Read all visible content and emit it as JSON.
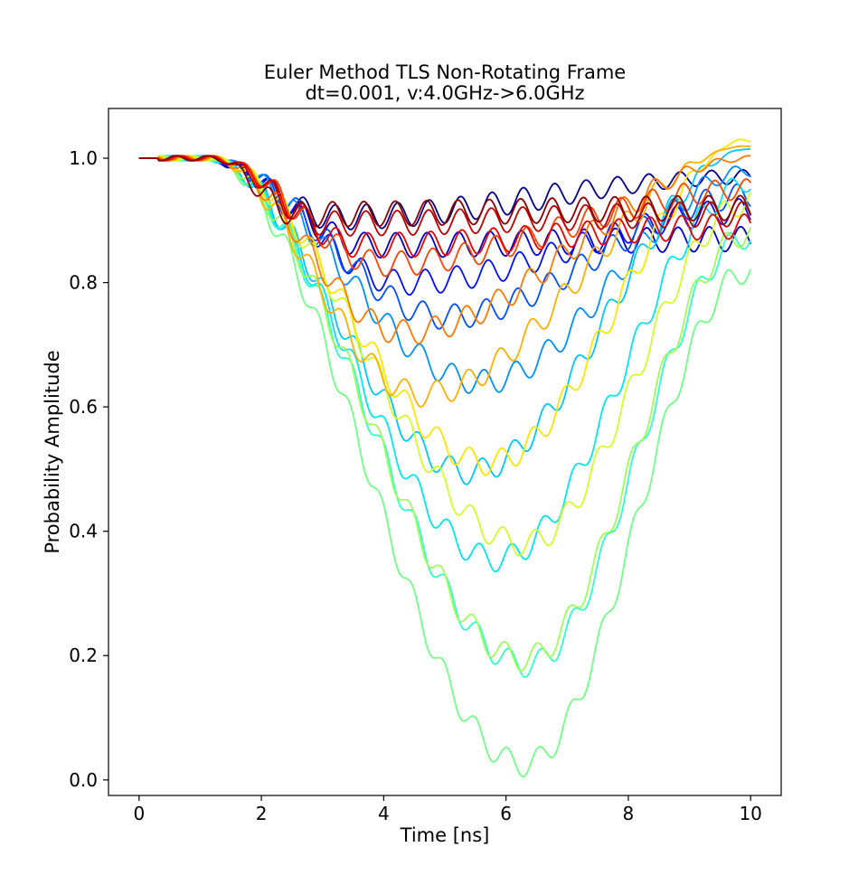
{
  "chart_data": {
    "type": "line",
    "title": "Euler Method TLS Non-Rotating Frame",
    "subtitle": "dt=0.001, v:4.0GHz->6.0GHz",
    "xlabel": "Time [ns]",
    "ylabel": "Probability Amplitude",
    "xlim": [
      -0.5,
      10.5
    ],
    "ylim": [
      -0.025,
      1.08
    ],
    "xticks": [
      0,
      2,
      4,
      6,
      8,
      10
    ],
    "xtick_labels": [
      "0",
      "2",
      "4",
      "6",
      "8",
      "10"
    ],
    "yticks": [
      0.0,
      0.2,
      0.4,
      0.6,
      0.8,
      1.0
    ],
    "ytick_labels": [
      "0.0",
      "0.2",
      "0.4",
      "0.6",
      "0.8",
      "1.0"
    ],
    "grid": false,
    "legend": "none",
    "colormap": "jet",
    "series": [
      {
        "color": "#00008f",
        "min_t": 3.2,
        "min_p": 0.905,
        "end_p": 0.97
      },
      {
        "color": "#0000cd",
        "min_t": 3.8,
        "min_p": 0.86,
        "end_p": 0.87
      },
      {
        "color": "#0010ff",
        "min_t": 4.3,
        "min_p": 0.8,
        "end_p": 0.915
      },
      {
        "color": "#0050ff",
        "min_t": 5.0,
        "min_p": 0.745,
        "end_p": 0.94
      },
      {
        "color": "#0090ff",
        "min_t": 5.6,
        "min_p": 0.64,
        "end_p": 0.98
      },
      {
        "color": "#00c8ff",
        "min_t": 5.4,
        "min_p": 0.495,
        "end_p": 1.015
      },
      {
        "color": "#00e8f0",
        "min_t": 5.85,
        "min_p": 0.355,
        "end_p": 0.96
      },
      {
        "color": "#30ffc7",
        "min_t": 6.35,
        "min_p": 0.185,
        "end_p": 0.875
      },
      {
        "color": "#70ff87",
        "min_t": 6.3,
        "min_p": 0.025,
        "end_p": 0.82
      },
      {
        "color": "#9dff5a",
        "min_t": 6.3,
        "min_p": 0.195,
        "end_p": 0.88
      },
      {
        "color": "#d0ff28",
        "min_t": 6.3,
        "min_p": 0.38,
        "end_p": 0.93
      },
      {
        "color": "#ffe600",
        "min_t": 5.7,
        "min_p": 0.51,
        "end_p": 1.03
      },
      {
        "color": "#ffb000",
        "min_t": 4.6,
        "min_p": 0.62,
        "end_p": 1.02
      },
      {
        "color": "#ff7a00",
        "min_t": 4.3,
        "min_p": 0.72,
        "end_p": 1.0
      },
      {
        "color": "#ff4400",
        "min_t": 4.0,
        "min_p": 0.83,
        "end_p": 0.95
      },
      {
        "color": "#ee0000",
        "min_t": 3.6,
        "min_p": 0.86,
        "end_p": 0.89
      },
      {
        "color": "#c00000",
        "min_t": 3.1,
        "min_p": 0.895,
        "end_p": 0.91
      },
      {
        "color": "#8a0000",
        "min_t": 2.6,
        "min_p": 0.91,
        "end_p": 0.92
      }
    ]
  }
}
